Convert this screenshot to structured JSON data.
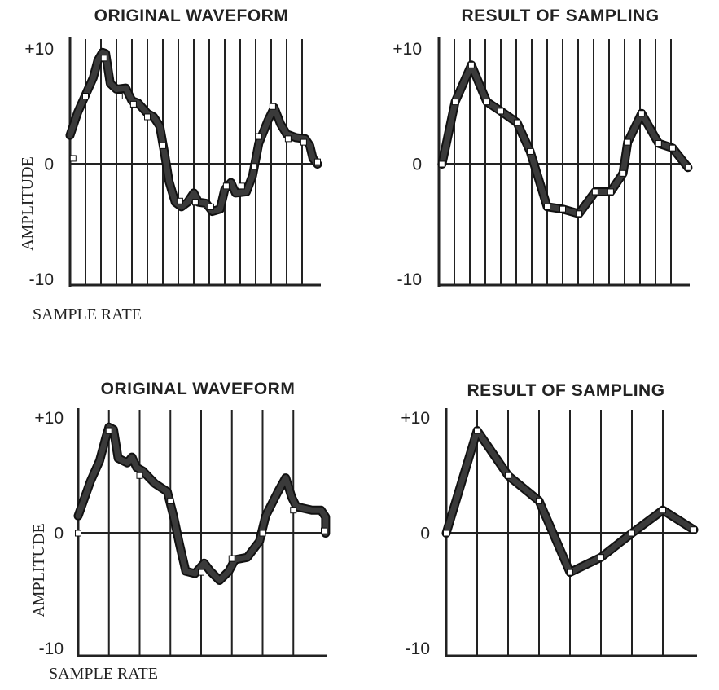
{
  "chart_data": [
    {
      "type": "line",
      "title": "ORIGINAL WAVEFORM",
      "ylabel": "AMPLITUDE",
      "xlabel": "SAMPLE RATE",
      "yticks": [
        "+10",
        "0",
        "-10"
      ],
      "ylim": [
        -10,
        10
      ],
      "xlim": [
        0,
        16
      ],
      "sample_lines": 16,
      "waveform": [
        [
          0,
          2.5
        ],
        [
          0.5,
          4.5
        ],
        [
          1,
          6
        ],
        [
          1.5,
          7.5
        ],
        [
          1.8,
          9
        ],
        [
          2.1,
          9.7
        ],
        [
          2.3,
          9.6
        ],
        [
          2.6,
          7
        ],
        [
          3,
          6.5
        ],
        [
          3.6,
          6.6
        ],
        [
          4,
          5.5
        ],
        [
          4.4,
          5.3
        ],
        [
          5,
          4.4
        ],
        [
          5.4,
          4.1
        ],
        [
          5.8,
          3.3
        ],
        [
          6.1,
          1
        ],
        [
          6.4,
          -1.5
        ],
        [
          6.8,
          -3.3
        ],
        [
          7.2,
          -3.7
        ],
        [
          7.6,
          -3.3
        ],
        [
          8,
          -2.5
        ],
        [
          8.3,
          -3.3
        ],
        [
          8.8,
          -3.4
        ],
        [
          9.2,
          -4.1
        ],
        [
          9.7,
          -3.9
        ],
        [
          10,
          -2.2
        ],
        [
          10.4,
          -1.6
        ],
        [
          10.7,
          -2.5
        ],
        [
          11.4,
          -2.4
        ],
        [
          11.8,
          -1
        ],
        [
          12.2,
          1.8
        ],
        [
          12.8,
          3.8
        ],
        [
          13.2,
          4.9
        ],
        [
          13.6,
          3.5
        ],
        [
          14,
          2.6
        ],
        [
          14.6,
          2.3
        ],
        [
          15.2,
          2.2
        ],
        [
          15.5,
          1.6
        ],
        [
          15.7,
          0.5
        ],
        [
          16,
          0
        ]
      ],
      "samples": [
        [
          0.2,
          0.5
        ],
        [
          1,
          5.9
        ],
        [
          2.2,
          9.2
        ],
        [
          3.2,
          5.9
        ],
        [
          4.1,
          5.2
        ],
        [
          5,
          4.1
        ],
        [
          6,
          1.6
        ],
        [
          7.1,
          -3.2
        ],
        [
          8.1,
          -3.3
        ],
        [
          9.1,
          -3.7
        ],
        [
          10.1,
          -1.9
        ],
        [
          11.1,
          -1.9
        ],
        [
          11.9,
          -0.2
        ],
        [
          12.2,
          2.4
        ],
        [
          13.1,
          5.0
        ],
        [
          14.1,
          2.2
        ],
        [
          15.1,
          1.9
        ],
        [
          16,
          0.2
        ]
      ]
    },
    {
      "type": "line",
      "title": "RESULT OF SAMPLING",
      "yticks": [
        "+10",
        "0",
        "-10"
      ],
      "ylim": [
        -10,
        10
      ],
      "xlim": [
        0,
        16
      ],
      "sample_lines": 16,
      "samples": [
        [
          0.2,
          0
        ],
        [
          1.05,
          5.4
        ],
        [
          2.1,
          8.6
        ],
        [
          3.1,
          5.4
        ],
        [
          4.0,
          4.6
        ],
        [
          5.05,
          3.6
        ],
        [
          5.9,
          1.1
        ],
        [
          7.0,
          -3.7
        ],
        [
          8.0,
          -3.9
        ],
        [
          9.05,
          -4.3
        ],
        [
          10.1,
          -2.4
        ],
        [
          11.1,
          -2.4
        ],
        [
          11.9,
          -0.8
        ],
        [
          12.2,
          1.9
        ],
        [
          13.1,
          4.4
        ],
        [
          14.2,
          1.8
        ],
        [
          15.1,
          1.4
        ],
        [
          16.1,
          -0.3
        ]
      ]
    },
    {
      "type": "line",
      "title": "ORIGINAL WAVEFORM",
      "ylabel": "AMPLITUDE",
      "xlabel": "SAMPLE RATE",
      "yticks": [
        "+10",
        "0",
        "-10"
      ],
      "ylim": [
        -10,
        10
      ],
      "xlim": [
        0,
        8
      ],
      "sample_lines": 8,
      "waveform": [
        [
          0,
          1.5
        ],
        [
          0.2,
          3
        ],
        [
          0.4,
          4.5
        ],
        [
          0.7,
          6.3
        ],
        [
          0.9,
          8.3
        ],
        [
          1,
          9.2
        ],
        [
          1.15,
          9
        ],
        [
          1.3,
          6.5
        ],
        [
          1.6,
          6.1
        ],
        [
          1.75,
          6.6
        ],
        [
          1.9,
          5.7
        ],
        [
          2.1,
          5.4
        ],
        [
          2.5,
          4.3
        ],
        [
          2.9,
          3.6
        ],
        [
          3.1,
          1.5
        ],
        [
          3.3,
          -1
        ],
        [
          3.5,
          -3.3
        ],
        [
          3.8,
          -3.5
        ],
        [
          4.1,
          -2.6
        ],
        [
          4.3,
          -3.3
        ],
        [
          4.6,
          -4.1
        ],
        [
          4.9,
          -3.3
        ],
        [
          5.1,
          -2.3
        ],
        [
          5.5,
          -2.1
        ],
        [
          5.9,
          -0.7
        ],
        [
          6.1,
          1.5
        ],
        [
          6.5,
          3.6
        ],
        [
          6.75,
          4.8
        ],
        [
          6.95,
          3.1
        ],
        [
          7.1,
          2.3
        ],
        [
          7.6,
          2.0
        ],
        [
          7.9,
          2.0
        ],
        [
          8.05,
          1.4
        ],
        [
          8.05,
          0
        ]
      ],
      "samples": [
        [
          0,
          0
        ],
        [
          1,
          8.9
        ],
        [
          2,
          5.0
        ],
        [
          3,
          2.8
        ],
        [
          4,
          -3.4
        ],
        [
          5,
          -2.2
        ],
        [
          6,
          0
        ],
        [
          7,
          2.0
        ],
        [
          8,
          0.2
        ]
      ]
    },
    {
      "type": "line",
      "title": "RESULT OF SAMPLING",
      "yticks": [
        "+10",
        "0",
        "-10"
      ],
      "ylim": [
        -10,
        10
      ],
      "xlim": [
        0,
        8
      ],
      "sample_lines": 8,
      "samples": [
        [
          0,
          0
        ],
        [
          1,
          8.9
        ],
        [
          2,
          5.0
        ],
        [
          3,
          2.8
        ],
        [
          4,
          -3.4
        ],
        [
          5,
          -2.1
        ],
        [
          6,
          0
        ],
        [
          7,
          2.0
        ],
        [
          8,
          0.3
        ]
      ]
    }
  ]
}
